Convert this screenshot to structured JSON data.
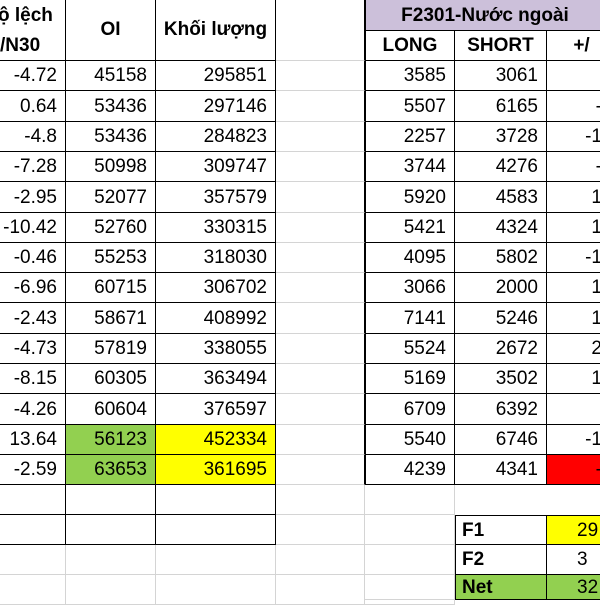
{
  "headers": {
    "do_lech_line1": "ộ lệch",
    "do_lech_line2": "/N30",
    "oi": "OI",
    "khoi_luong": "Khối lượng",
    "f2301_title": "F2301-Nước ngoài",
    "long": "LONG",
    "short": "SHORT",
    "net_change": "+/"
  },
  "left_rows": [
    {
      "dolech": "-4.72",
      "oi": "45158",
      "kl": "295851"
    },
    {
      "dolech": "0.64",
      "oi": "53436",
      "kl": "297146"
    },
    {
      "dolech": "-4.8",
      "oi": "53436",
      "kl": "284823"
    },
    {
      "dolech": "-7.28",
      "oi": "50998",
      "kl": "309747"
    },
    {
      "dolech": "-2.95",
      "oi": "52077",
      "kl": "357579"
    },
    {
      "dolech": "-10.42",
      "oi": "52760",
      "kl": "330315"
    },
    {
      "dolech": "-0.46",
      "oi": "55253",
      "kl": "318030"
    },
    {
      "dolech": "-6.96",
      "oi": "60715",
      "kl": "306702"
    },
    {
      "dolech": "-2.43",
      "oi": "58671",
      "kl": "408992"
    },
    {
      "dolech": "-4.73",
      "oi": "57819",
      "kl": "338055"
    },
    {
      "dolech": "-8.15",
      "oi": "60305",
      "kl": "363494"
    },
    {
      "dolech": "-4.26",
      "oi": "60604",
      "kl": "376597"
    },
    {
      "dolech": "13.64",
      "oi": "56123",
      "kl": "452334"
    },
    {
      "dolech": "-2.59",
      "oi": "63653",
      "kl": "361695"
    }
  ],
  "right_rows": [
    {
      "long": "3585",
      "short": "3061",
      "net": ""
    },
    {
      "long": "5507",
      "short": "6165",
      "net": "-"
    },
    {
      "long": "2257",
      "short": "3728",
      "net": "-1"
    },
    {
      "long": "3744",
      "short": "4276",
      "net": "-"
    },
    {
      "long": "5920",
      "short": "4583",
      "net": "1"
    },
    {
      "long": "5421",
      "short": "4324",
      "net": "1"
    },
    {
      "long": "4095",
      "short": "5802",
      "net": "-1"
    },
    {
      "long": "3066",
      "short": "2000",
      "net": "1"
    },
    {
      "long": "7141",
      "short": "5246",
      "net": "1"
    },
    {
      "long": "5524",
      "short": "2672",
      "net": "2"
    },
    {
      "long": "5169",
      "short": "3502",
      "net": "1"
    },
    {
      "long": "6709",
      "short": "6392",
      "net": ""
    },
    {
      "long": "5540",
      "short": "6746",
      "net": "-1"
    },
    {
      "long": "4239",
      "short": "4341",
      "net": "-"
    }
  ],
  "summary": [
    {
      "label": "F1",
      "value": "29"
    },
    {
      "label": "F2",
      "value": "3"
    },
    {
      "label": "Net",
      "value": "32"
    }
  ],
  "colors": {
    "header_purple": "#ccc0da",
    "green": "#92d050",
    "yellow": "#ffff00",
    "red": "#ff0000"
  }
}
